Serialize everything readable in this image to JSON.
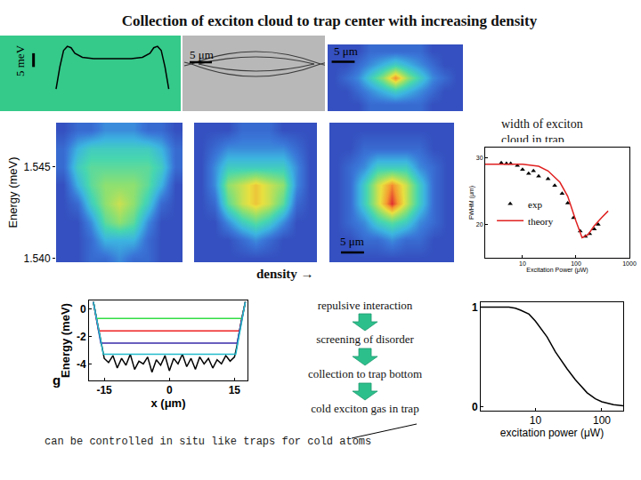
{
  "title": "Collection of exciton cloud to trap center with increasing density",
  "density_label": "density →",
  "flow": [
    "repulsive interaction",
    "screening of disorder",
    "collection to trap bottom",
    "cold exciton gas in trap"
  ],
  "note": "can be controlled in situ like traps for cold atoms",
  "trap_image": {
    "scale_bar_label": "5 μm"
  },
  "chart_data": [
    {
      "type": "line",
      "color": "#000000",
      "tick_labels": false,
      "x": [
        -15,
        -14,
        -13,
        -12,
        -11,
        -10,
        -8,
        -5,
        0,
        5,
        8,
        10,
        11,
        12,
        13,
        14,
        15
      ],
      "values": [
        0,
        8,
        14,
        15.5,
        15,
        13,
        11.5,
        11,
        11,
        11,
        11.5,
        13,
        15,
        15.5,
        14,
        8,
        0
      ],
      "xlim": [
        -24,
        17
      ],
      "ylim": [
        -5.5,
        17.5
      ],
      "scale_bar": {
        "label": "5 meV",
        "value": 5
      }
    },
    {
      "type": "heatmap",
      "tick_labels": false,
      "z": [
        [
          0,
          0,
          0,
          1,
          1,
          1,
          1,
          1,
          0,
          0,
          0
        ],
        [
          0,
          0,
          1,
          2,
          3,
          4,
          3,
          2,
          1,
          0,
          0
        ],
        [
          0,
          1,
          2,
          4,
          6,
          9,
          6,
          4,
          2,
          1,
          0
        ],
        [
          0,
          0,
          1,
          2,
          3,
          4,
          3,
          2,
          1,
          0,
          0
        ],
        [
          0,
          0,
          0,
          1,
          1,
          1,
          1,
          1,
          0,
          0,
          0
        ]
      ],
      "zlim": [
        0,
        10
      ],
      "xlim": [
        -0.5,
        10.5
      ],
      "ylim": [
        -0.5,
        4.5
      ],
      "scale_bar": {
        "label": "5 μm"
      }
    },
    {
      "type": "heatmap",
      "tick_labels": "y",
      "ylabel": "Energy (meV)",
      "x": [
        -12,
        -9,
        -6,
        -3,
        0,
        3,
        6,
        9,
        12
      ],
      "y": [
        1.54,
        1.541,
        1.542,
        1.543,
        1.544,
        1.545,
        1.546,
        1.547
      ],
      "z": [
        [
          0,
          0,
          1,
          1,
          2,
          1,
          1,
          0,
          0
        ],
        [
          0,
          0,
          1,
          3,
          3,
          3,
          1,
          0,
          0
        ],
        [
          0,
          0,
          2,
          5,
          6,
          5,
          2,
          0,
          0
        ],
        [
          0,
          1,
          4,
          6,
          7,
          6,
          4,
          1,
          0
        ],
        [
          0,
          3,
          5,
          6,
          6,
          6,
          5,
          3,
          0
        ],
        [
          1,
          4,
          5,
          5,
          5,
          5,
          5,
          4,
          1
        ],
        [
          1,
          3,
          4,
          4,
          4,
          4,
          4,
          3,
          1
        ],
        [
          0,
          1,
          1,
          2,
          2,
          2,
          1,
          1,
          0
        ]
      ],
      "zlim": [
        0,
        10
      ],
      "xlim": [
        -13.5,
        13.5
      ],
      "ylim": [
        1.5398,
        1.5474
      ],
      "yticks": [
        {
          "value": 1.54,
          "label": "1.540"
        },
        1.545
      ]
    },
    {
      "type": "heatmap",
      "tick_labels": false,
      "x": [
        -12,
        -9,
        -6,
        -3,
        0,
        3,
        6,
        9,
        12
      ],
      "y": [
        1.54,
        1.541,
        1.542,
        1.543,
        1.544,
        1.545,
        1.546,
        1.547
      ],
      "z": [
        [
          0,
          0,
          0,
          0,
          0,
          0,
          0,
          0,
          0
        ],
        [
          0,
          0,
          0,
          1,
          2,
          1,
          0,
          0,
          0
        ],
        [
          0,
          0,
          2,
          4,
          5,
          4,
          2,
          0,
          0
        ],
        [
          0,
          1,
          5,
          7,
          8,
          7,
          5,
          1,
          0
        ],
        [
          0,
          2,
          6,
          7,
          8,
          7,
          6,
          2,
          0
        ],
        [
          0,
          2,
          4,
          4,
          4,
          4,
          4,
          2,
          0
        ],
        [
          0,
          1,
          2,
          2,
          2,
          2,
          2,
          1,
          0
        ],
        [
          0,
          0,
          0,
          1,
          1,
          1,
          0,
          0,
          0
        ]
      ],
      "zlim": [
        0,
        10
      ],
      "xlim": [
        -13.5,
        13.5
      ],
      "ylim": [
        1.5398,
        1.5474
      ]
    },
    {
      "type": "heatmap",
      "tick_labels": false,
      "x": [
        -12,
        -9,
        -6,
        -3,
        0,
        3,
        6,
        9,
        12
      ],
      "y": [
        1.54,
        1.541,
        1.542,
        1.543,
        1.544,
        1.545,
        1.546,
        1.547
      ],
      "z": [
        [
          0,
          0,
          0,
          0,
          0,
          0,
          0,
          0,
          0
        ],
        [
          0,
          0,
          1,
          1,
          2,
          1,
          1,
          0,
          0
        ],
        [
          0,
          1,
          2,
          4,
          5,
          4,
          2,
          1,
          0
        ],
        [
          0,
          1,
          4,
          7,
          10,
          7,
          4,
          1,
          0
        ],
        [
          0,
          1,
          4,
          7,
          9,
          7,
          4,
          1,
          0
        ],
        [
          0,
          1,
          2,
          4,
          4,
          4,
          2,
          1,
          0
        ],
        [
          0,
          0,
          1,
          1,
          1,
          1,
          1,
          0,
          0
        ],
        [
          0,
          0,
          0,
          0,
          0,
          0,
          0,
          0,
          0
        ]
      ],
      "zlim": [
        0,
        10
      ],
      "xlim": [
        -13.5,
        13.5
      ],
      "ylim": [
        1.5398,
        1.5474
      ],
      "scale_bar": {
        "label": "5 μm",
        "value": 5
      }
    },
    {
      "type": "scatter",
      "title": "width of exciton cloud in trap",
      "xlabel": "Excitation Power (μW)",
      "ylabel": "FWHM (μm)",
      "log": "x",
      "xlim": [
        2,
        1000
      ],
      "ylim": [
        15,
        31.5
      ],
      "xticks": [
        10,
        100,
        1000
      ],
      "yticks": [
        20,
        30
      ],
      "legend": "lower left",
      "series": [
        {
          "name": "exp",
          "type": "scatter",
          "marker": "triangle-up",
          "color": "#000000",
          "x": [
            4,
            5,
            6,
            8,
            10,
            13,
            16,
            20,
            30,
            40,
            55,
            70,
            90,
            120,
            150,
            180,
            220,
            260
          ],
          "values": [
            29.2,
            29.1,
            29.1,
            28.8,
            28.2,
            27.6,
            28.0,
            27.2,
            26.8,
            25.8,
            24.6,
            23.2,
            21.0,
            19.0,
            18.2,
            18.6,
            19.3,
            20.0
          ]
        },
        {
          "name": "theory",
          "type": "line",
          "color": "#e02020",
          "x": [
            2,
            5,
            10,
            20,
            30,
            50,
            70,
            100,
            130,
            170,
            220,
            300,
            400
          ],
          "values": [
            29,
            29,
            29,
            28.7,
            28,
            26.3,
            24.2,
            20.5,
            18,
            18.5,
            19.8,
            21,
            22
          ]
        }
      ]
    },
    {
      "type": "line",
      "xlabel": "x (μm)",
      "ylabel": "Energy (meV)",
      "annotation": "g",
      "xlim": [
        -18.5,
        18
      ],
      "ylim": [
        -5.2,
        0.6
      ],
      "xticks": [
        -15,
        0,
        15
      ],
      "yticks": [
        0,
        -2,
        -4
      ],
      "series": [
        {
          "color": "#000000",
          "x": [
            -17.5,
            -16.5,
            -15.5,
            -15,
            -14,
            -13,
            -12,
            -11,
            -10,
            -9,
            -8,
            -7,
            -6,
            -5,
            -4,
            -3,
            -2,
            -1,
            0,
            1,
            2,
            3,
            4,
            5,
            6,
            7,
            8,
            9,
            10,
            11,
            12,
            13,
            14,
            15,
            15.5,
            16.5,
            17.5
          ],
          "values": [
            0.5,
            -1.2,
            -3.0,
            -3.6,
            -3.9,
            -3.4,
            -4.3,
            -3.6,
            -4.1,
            -3.3,
            -4.4,
            -3.8,
            -4.0,
            -3.5,
            -4.6,
            -3.7,
            -4.1,
            -3.4,
            -4.5,
            -3.6,
            -4.0,
            -3.3,
            -4.2,
            -3.6,
            -4.4,
            -3.5,
            -4.0,
            -3.6,
            -4.3,
            -3.7,
            -4.0,
            -3.4,
            -3.8,
            -3.5,
            -2.8,
            -1.0,
            0.5
          ]
        },
        {
          "color": "#33dd44",
          "x": [
            -17.5,
            -16.8,
            16.7,
            17.5
          ],
          "values": [
            0.5,
            -0.7,
            -0.7,
            0.5
          ]
        },
        {
          "color": "#ee2222",
          "x": [
            -17.5,
            -16.3,
            16.2,
            17.5
          ],
          "values": [
            0.5,
            -1.6,
            -1.6,
            0.5
          ]
        },
        {
          "color": "#3a2aa8",
          "x": [
            -17.5,
            -15.8,
            15.6,
            17.5
          ],
          "values": [
            0.5,
            -2.5,
            -2.5,
            0.5
          ]
        },
        {
          "color": "#22bbcc",
          "x": [
            -17.5,
            -15.2,
            15.3,
            17.5
          ],
          "values": [
            0.5,
            -3.3,
            -3.3,
            0.5
          ]
        }
      ]
    },
    {
      "type": "line",
      "color": "#000000",
      "xlabel": "excitation power (μW)",
      "log": "x",
      "xlim": [
        1.5,
        210
      ],
      "ylim": [
        -0.04,
        1.05
      ],
      "xticks": [
        10,
        100
      ],
      "yticks": [
        0,
        1
      ],
      "x": [
        1.5,
        2,
        3,
        4,
        5,
        6,
        8,
        10,
        15,
        20,
        30,
        40,
        60,
        80,
        100,
        150,
        210
      ],
      "values": [
        1,
        1,
        1,
        1,
        0.99,
        0.97,
        0.93,
        0.86,
        0.7,
        0.55,
        0.38,
        0.27,
        0.14,
        0.08,
        0.05,
        0.02,
        0.01
      ]
    }
  ]
}
